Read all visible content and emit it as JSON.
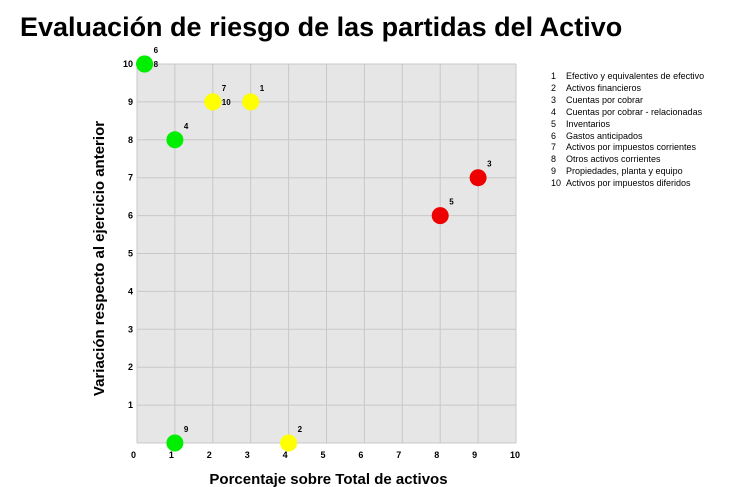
{
  "chart_data": {
    "type": "scatter",
    "title": "Evaluación de riesgo de las partidas del Activo",
    "xlabel": "Porcentaje sobre Total de activos",
    "ylabel": "Variación respecto al ejercicio anterior",
    "xlim": [
      0,
      10
    ],
    "ylim": [
      0,
      10
    ],
    "x_ticks": [
      "0",
      "1",
      "2",
      "3",
      "4",
      "5",
      "6",
      "7",
      "8",
      "9",
      "10"
    ],
    "y_ticks": [
      "1",
      "2",
      "3",
      "4",
      "5",
      "6",
      "7",
      "8",
      "9",
      "10"
    ],
    "grid": true,
    "legend_position": "right",
    "colors": {
      "green": "#00ee00",
      "yellow": "#ffff00",
      "red": "#ee0000",
      "plot_bg": "#e6e6e6",
      "grid": "#c8c8c8"
    },
    "points": [
      {
        "label": "1",
        "x": 3,
        "y": 9,
        "color": "yellow"
      },
      {
        "label": "2",
        "x": 4,
        "y": 0,
        "color": "yellow"
      },
      {
        "label": "3",
        "x": 9,
        "y": 7,
        "color": "red"
      },
      {
        "label": "4",
        "x": 1,
        "y": 8,
        "color": "green"
      },
      {
        "label": "5",
        "x": 8,
        "y": 6,
        "color": "red"
      },
      {
        "label": "6",
        "x": 0.2,
        "y": 10,
        "color": "green"
      },
      {
        "label": "7",
        "x": 2,
        "y": 9,
        "color": "yellow"
      },
      {
        "label": "8",
        "x": 0.2,
        "y": 10,
        "color": "green"
      },
      {
        "label": "9",
        "x": 1,
        "y": 0,
        "color": "green"
      },
      {
        "label": "10",
        "x": 2,
        "y": 9,
        "color": "yellow"
      }
    ],
    "legend": [
      {
        "num": "1",
        "text": "Efectivo y equivalentes de efectivo"
      },
      {
        "num": "2",
        "text": "Activos financieros"
      },
      {
        "num": "3",
        "text": "Cuentas por cobrar"
      },
      {
        "num": "4",
        "text": "Cuentas por cobrar - relacionadas"
      },
      {
        "num": "5",
        "text": "Inventarios"
      },
      {
        "num": "6",
        "text": "Gastos anticipados"
      },
      {
        "num": "7",
        "text": "Activos por impuestos corrientes"
      },
      {
        "num": "8",
        "text": "Otros activos corrientes"
      },
      {
        "num": "9",
        "text": "Propiedades, planta y equipo"
      },
      {
        "num": "10",
        "text": "Activos por impuestos diferidos"
      }
    ]
  }
}
